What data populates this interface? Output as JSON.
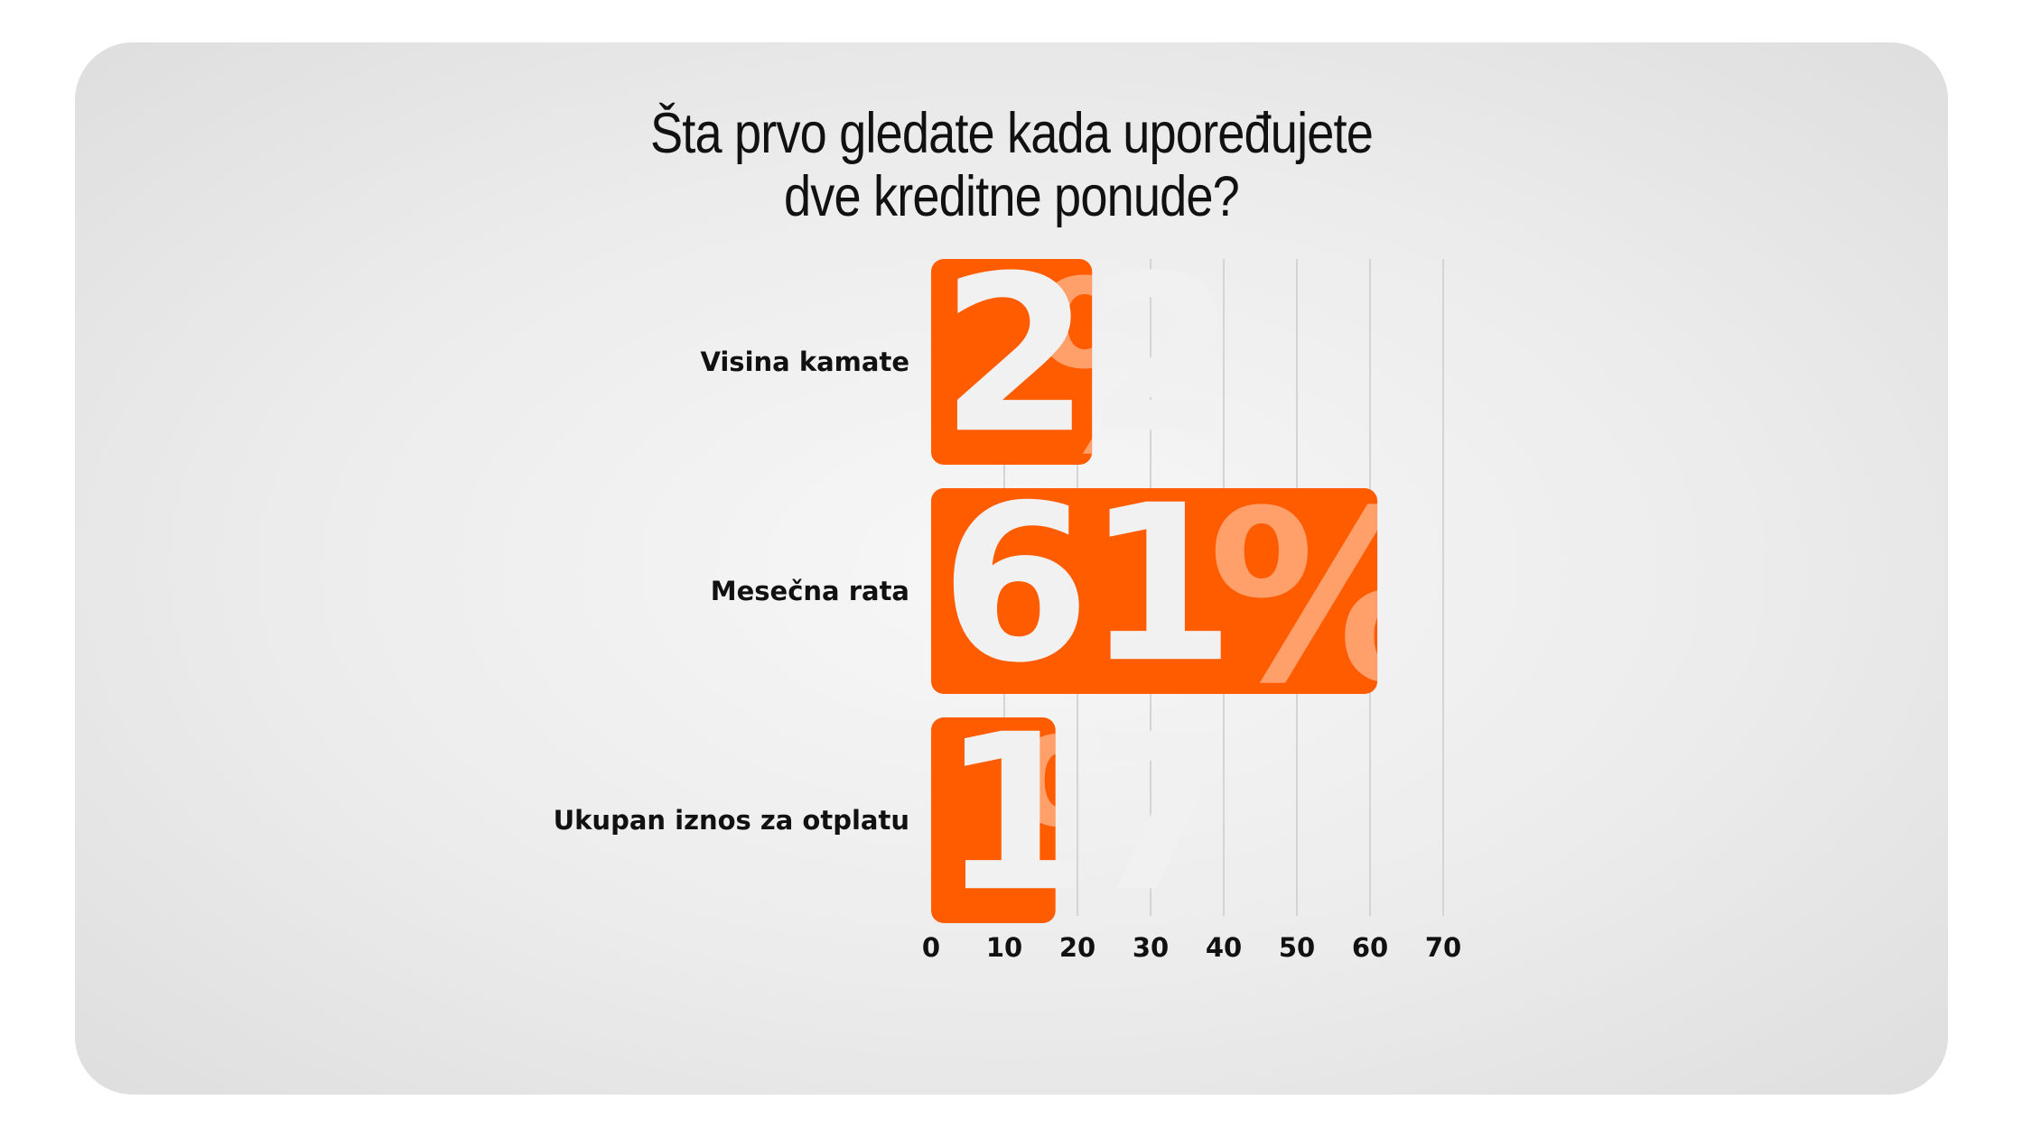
{
  "chart_data": {
    "type": "bar",
    "orientation": "horizontal",
    "title": "Šta prvo gledate kada upoređujete dve kreditne ponude?",
    "title_lines": [
      "Šta prvo gledate kada upoređujete",
      "dve kreditne ponude?"
    ],
    "categories": [
      "Visina kamate",
      "Mesečna rata",
      "Ukupan iznos za otplatu"
    ],
    "values": [
      22,
      61,
      17
    ],
    "value_suffix": "%",
    "xlim": [
      0,
      70
    ],
    "xticks": [
      "0",
      "10",
      "20",
      "30",
      "40",
      "50",
      "60",
      "70"
    ],
    "grid": "vertical",
    "xlabel": "",
    "ylabel": "",
    "bar_color": "#ff5c00",
    "gridline_color": "#d4d4d4",
    "value_text_color": "#f1f1f1"
  }
}
